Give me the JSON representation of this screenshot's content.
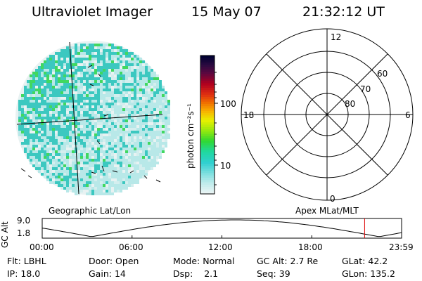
{
  "header": {
    "title": "Ultraviolet Imager",
    "date": "15 May 07",
    "time": "21:32:12 UT"
  },
  "colorbar": {
    "label": "photon cm⁻²s⁻¹",
    "ticks": [
      "100",
      "10"
    ]
  },
  "polar_plot": {
    "mlt_labels": {
      "top": "12",
      "left": "18",
      "right": "6",
      "bottom": "0"
    },
    "lat_labels": [
      "60",
      "70",
      "80"
    ]
  },
  "panel_labels": {
    "geographic": "Geographic Lat/Lon",
    "apex": "Apex MLat/MLT"
  },
  "altitude_plot": {
    "axis_label": "GC Alt",
    "y_ticks": [
      "9.0",
      "1.8"
    ],
    "x_ticks": [
      "00:00",
      "06:00",
      "12:00",
      "18:00",
      "23:59"
    ],
    "current_marker_hours": 21.53
  },
  "info": {
    "flt_label": "Flt:",
    "flt_value": "LBHL",
    "door_label": "Door:",
    "door_value": "Open",
    "mode_label": "Mode:",
    "mode_value": "Normal",
    "gcalt_label": "GC Alt:",
    "gcalt_value": "2.7 Re",
    "glat_label": "GLat:",
    "glat_value": "42.2",
    "ip_label": "IP:",
    "ip_value": "18.0",
    "gain_label": "Gain:",
    "gain_value": "14",
    "dsp_label": "Dsp:",
    "dsp_value": "2.1",
    "seq_label": "Seq:",
    "seq_value": "39",
    "glon_label": "GLon:",
    "glon_value": "135.2"
  },
  "colors": {
    "marker": "#dd0000",
    "dot_teal": "#3cc8c0",
    "dot_light": "#b8e8e8",
    "dot_green": "#40d860"
  }
}
